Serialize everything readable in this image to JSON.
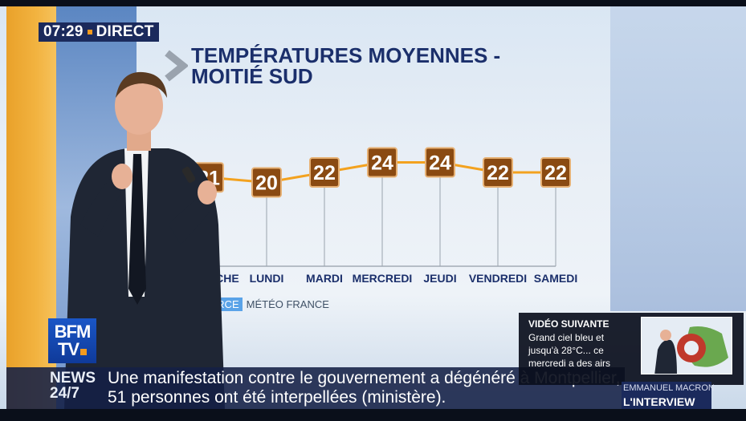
{
  "live": {
    "time": "07:29",
    "label": "DIRECT"
  },
  "title": {
    "line1": "TEMPÉRATURES MOYENNES -",
    "line2": "MOITIÉ SUD"
  },
  "chart_data": {
    "type": "line",
    "categories": [
      "DIMANCHE",
      "LUNDI",
      "MARDI",
      "MERCREDI",
      "JEUDI",
      "VENDREDI",
      "SAMEDI"
    ],
    "values": [
      21,
      20,
      22,
      24,
      24,
      22,
      22
    ],
    "title": "TEMPÉRATURES MOYENNES - MOITIÉ SUD",
    "ylim": [
      18,
      26
    ],
    "line_color": "#f3a21f",
    "label_bg": "#8a4a12"
  },
  "source": {
    "tag": "SOURCE",
    "value": "MÉTÉO FRANCE"
  },
  "logo": {
    "line1": "BFM",
    "line2": "TV"
  },
  "ticker": {
    "label_line1": "NEWS",
    "label_line2": "24/7",
    "text_line1": "Une manifestation contre le gouvernement a dégénéré à Montpellier,",
    "text_line2": "51 personnes ont été interpellées (ministère)."
  },
  "next_video": {
    "label": "VIDÉO SUIVANTE",
    "description": "Grand ciel bleu et jusqu'à 28°C... ce mercredi a des airs"
  },
  "interview": {
    "name": "EMMANUEL MACRON",
    "label": "L'INTERVIEW"
  }
}
